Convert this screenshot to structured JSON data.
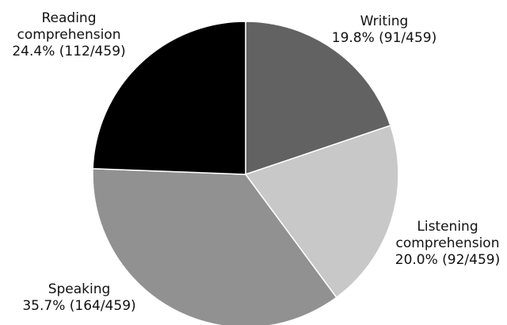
{
  "chart_data": {
    "type": "pie",
    "total": 459,
    "slices": [
      {
        "name": "Writing",
        "count": 91,
        "percent": 19.8,
        "color": "#626262",
        "label_lines": [
          "Writing",
          "19.8% (91/459)"
        ]
      },
      {
        "name": "Listening comprehension",
        "count": 92,
        "percent": 20.0,
        "color": "#c8c8c8",
        "label_lines": [
          "Listening",
          "comprehension",
          "20.0% (92/459)"
        ]
      },
      {
        "name": "Speaking",
        "count": 164,
        "percent": 35.7,
        "color": "#919191",
        "label_lines": [
          "Speaking",
          "35.7% (164/459)"
        ]
      },
      {
        "name": "Reading comprehension",
        "count": 112,
        "percent": 24.4,
        "color": "#000000",
        "label_lines": [
          "Reading",
          "comprehension",
          "24.4% (112/459)"
        ]
      }
    ],
    "start_angle_deg": 0,
    "direction": "clockwise",
    "legend": "none"
  }
}
